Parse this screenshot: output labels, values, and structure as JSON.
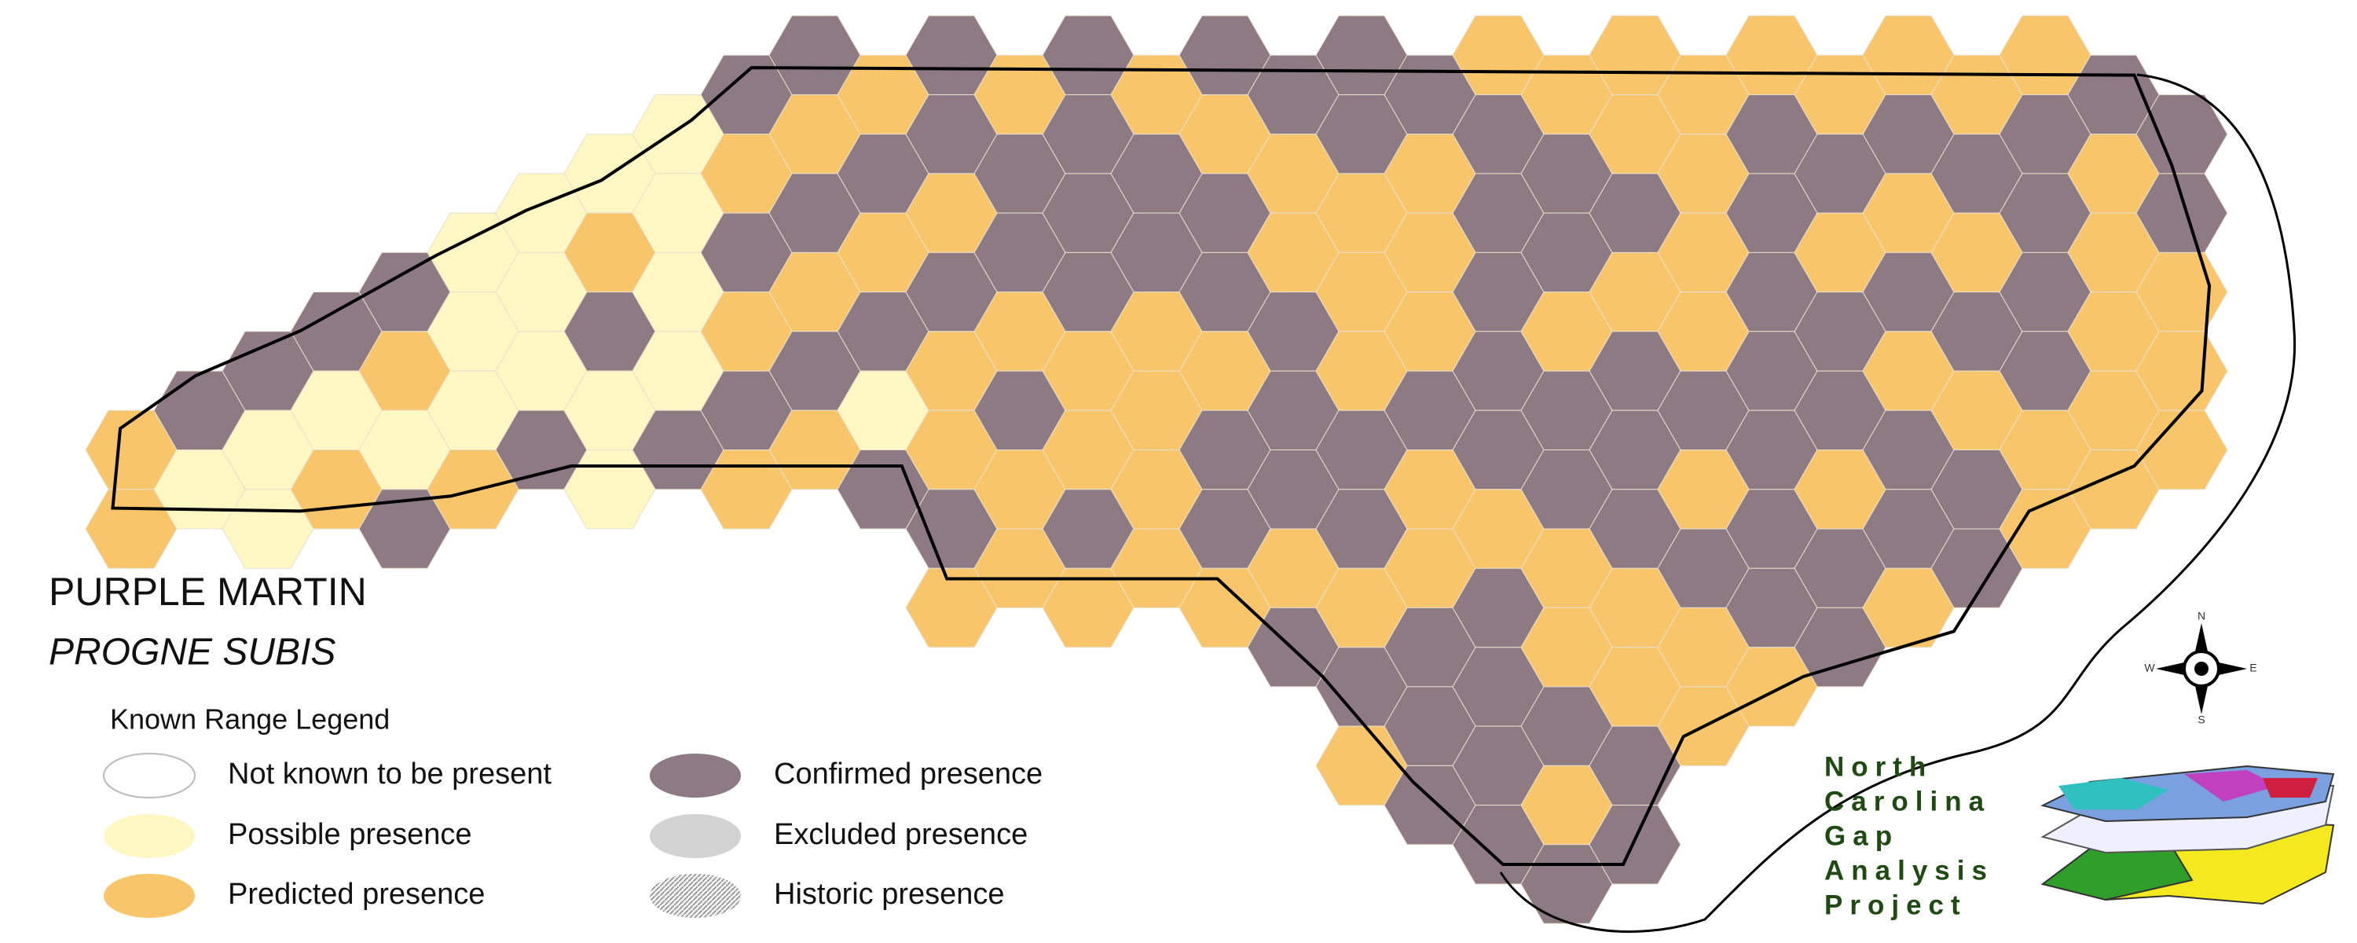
{
  "title": "PURPLE MARTIN",
  "subtitle": "PROGNE SUBIS",
  "legend": {
    "title": "Known Range Legend",
    "items": [
      {
        "label": "Not known to be present",
        "color": "#ffffff"
      },
      {
        "label": "Possible presence",
        "color": "#fdf7c4"
      },
      {
        "label": "Predicted presence",
        "color": "#f9c56a"
      },
      {
        "label": "Confirmed presence",
        "color": "#8e7a82"
      },
      {
        "label": "Excluded presence",
        "color": "#d2d2d2"
      },
      {
        "label": "Historic presence",
        "color": "#e4e4e4"
      }
    ]
  },
  "compass": {
    "n": "N",
    "s": "S",
    "e": "E",
    "w": "W"
  },
  "logo": [
    "North",
    "Carolina",
    "Gap",
    "Analysis",
    "Project"
  ]
}
